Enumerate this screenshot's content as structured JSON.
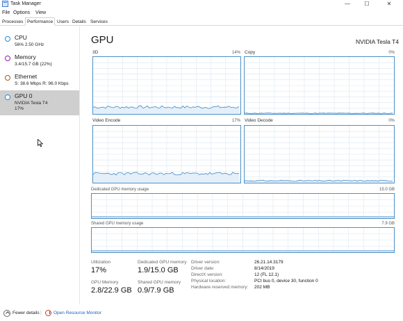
{
  "window": {
    "title": "Task Manager",
    "controls": {
      "minimize": "—",
      "maximize": "☐",
      "close": "✕"
    }
  },
  "menu": [
    "File",
    "Options",
    "View"
  ],
  "tabs": [
    "Processes",
    "Performance",
    "Users",
    "Details",
    "Services"
  ],
  "active_tab": "Performance",
  "sidebar": {
    "items": [
      {
        "name": "CPU",
        "sub": "56%  2.50 GHz",
        "color": "#1f8ec9"
      },
      {
        "name": "Memory",
        "sub": "3.4/15.7 GB (22%)",
        "color": "#8b1fa8"
      },
      {
        "name": "Ethernet",
        "sub": "S: 38.6 Mbps  R: 96.0 Kbps",
        "color": "#a65d14"
      },
      {
        "name": "GPU 0",
        "sub": "NVIDIA Tesla T4",
        "sub2": "17%",
        "color": "#1f8ec9",
        "selected": true
      }
    ]
  },
  "main": {
    "title": "GPU",
    "adapter": "NVIDIA Tesla T4",
    "graphs": [
      {
        "label": "3D",
        "pct": "14%"
      },
      {
        "label": "Copy",
        "pct": "0%"
      },
      {
        "label": "Video Encode",
        "pct": "17%"
      },
      {
        "label": "Video Decode",
        "pct": "0%"
      }
    ],
    "dedicated": {
      "label": "Dedicated GPU memory usage",
      "max": "15.0 GB"
    },
    "shared": {
      "label": "Shared GPU memory usage",
      "max": "7.9 GB"
    },
    "stats": {
      "utilization": {
        "label": "Utilization",
        "value": "17%"
      },
      "dedicated_mem": {
        "label": "Dedicated GPU memory",
        "value": "1.9/15.0 GB"
      },
      "gpu_mem": {
        "label": "GPU Memory",
        "value": "2.8/22.9 GB"
      },
      "shared_mem": {
        "label": "Shared GPU memory",
        "value": "0.9/7.9 GB"
      }
    },
    "info": [
      {
        "label": "Driver version:",
        "value": "26.21.14.3179"
      },
      {
        "label": "Driver date:",
        "value": "8/14/2019"
      },
      {
        "label": "DirectX version:",
        "value": "12 (FL 12.1)"
      },
      {
        "label": "Physical location:",
        "value": "PCI bus 0, device 30, function 0"
      },
      {
        "label": "Hardware reserved memory:",
        "value": "202 MB"
      }
    ]
  },
  "footer": {
    "fewer_details": "Fewer details",
    "separator": "|",
    "resource_monitor": "Open Resource Monitor"
  },
  "colors": {
    "graph_border": "#4a90c8",
    "graph_line": "#3a86c4",
    "grid": "#dbe7f2"
  }
}
